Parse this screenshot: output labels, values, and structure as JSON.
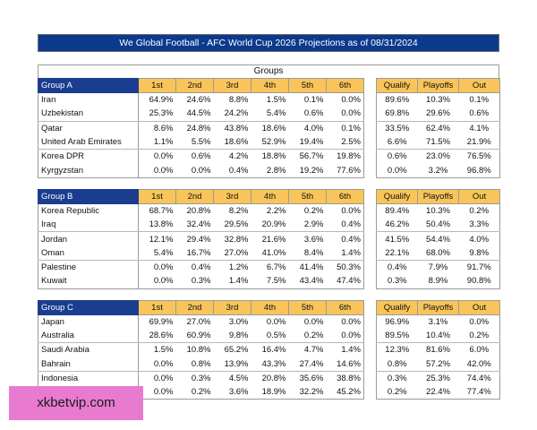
{
  "title": "We Global Football - AFC World Cup 2026 Projections as of 08/31/2024",
  "groups_label": "Groups",
  "columns": {
    "places": [
      "1st",
      "2nd",
      "3rd",
      "4th",
      "5th",
      "6th"
    ],
    "outcomes": [
      "Qualify",
      "Playoffs",
      "Out"
    ]
  },
  "groups": [
    {
      "name": "Group A",
      "rows": [
        {
          "team": "Iran",
          "places": [
            "64.9%",
            "24.6%",
            "8.8%",
            "1.5%",
            "0.1%",
            "0.0%"
          ],
          "outcomes": [
            "89.6%",
            "10.3%",
            "0.1%"
          ]
        },
        {
          "team": "Uzbekistan",
          "places": [
            "25.3%",
            "44.5%",
            "24.2%",
            "5.4%",
            "0.6%",
            "0.0%"
          ],
          "outcomes": [
            "69.8%",
            "29.6%",
            "0.6%"
          ]
        },
        {
          "team": "Qatar",
          "places": [
            "8.6%",
            "24.8%",
            "43.8%",
            "18.6%",
            "4.0%",
            "0.1%"
          ],
          "outcomes": [
            "33.5%",
            "62.4%",
            "4.1%"
          ]
        },
        {
          "team": "United Arab Emirates",
          "places": [
            "1.1%",
            "5.5%",
            "18.6%",
            "52.9%",
            "19.4%",
            "2.5%"
          ],
          "outcomes": [
            "6.6%",
            "71.5%",
            "21.9%"
          ]
        },
        {
          "team": "Korea DPR",
          "places": [
            "0.0%",
            "0.6%",
            "4.2%",
            "18.8%",
            "56.7%",
            "19.8%"
          ],
          "outcomes": [
            "0.6%",
            "23.0%",
            "76.5%"
          ]
        },
        {
          "team": "Kyrgyzstan",
          "places": [
            "0.0%",
            "0.0%",
            "0.4%",
            "2.8%",
            "19.2%",
            "77.6%"
          ],
          "outcomes": [
            "0.0%",
            "3.2%",
            "96.8%"
          ]
        }
      ]
    },
    {
      "name": "Group B",
      "rows": [
        {
          "team": "Korea Republic",
          "places": [
            "68.7%",
            "20.8%",
            "8.2%",
            "2.2%",
            "0.2%",
            "0.0%"
          ],
          "outcomes": [
            "89.4%",
            "10.3%",
            "0.2%"
          ]
        },
        {
          "team": "Iraq",
          "places": [
            "13.8%",
            "32.4%",
            "29.5%",
            "20.9%",
            "2.9%",
            "0.4%"
          ],
          "outcomes": [
            "46.2%",
            "50.4%",
            "3.3%"
          ]
        },
        {
          "team": "Jordan",
          "places": [
            "12.1%",
            "29.4%",
            "32.8%",
            "21.6%",
            "3.6%",
            "0.4%"
          ],
          "outcomes": [
            "41.5%",
            "54.4%",
            "4.0%"
          ]
        },
        {
          "team": "Oman",
          "places": [
            "5.4%",
            "16.7%",
            "27.0%",
            "41.0%",
            "8.4%",
            "1.4%"
          ],
          "outcomes": [
            "22.1%",
            "68.0%",
            "9.8%"
          ]
        },
        {
          "team": "Palestine",
          "places": [
            "0.0%",
            "0.4%",
            "1.2%",
            "6.7%",
            "41.4%",
            "50.3%"
          ],
          "outcomes": [
            "0.4%",
            "7.9%",
            "91.7%"
          ]
        },
        {
          "team": "Kuwait",
          "places": [
            "0.0%",
            "0.3%",
            "1.4%",
            "7.5%",
            "43.4%",
            "47.4%"
          ],
          "outcomes": [
            "0.3%",
            "8.9%",
            "90.8%"
          ]
        }
      ]
    },
    {
      "name": "Group C",
      "rows": [
        {
          "team": "Japan",
          "places": [
            "69.9%",
            "27.0%",
            "3.0%",
            "0.0%",
            "0.0%",
            "0.0%"
          ],
          "outcomes": [
            "96.9%",
            "3.1%",
            "0.0%"
          ]
        },
        {
          "team": "Australia",
          "places": [
            "28.6%",
            "60.9%",
            "9.8%",
            "0.5%",
            "0.2%",
            "0.0%"
          ],
          "outcomes": [
            "89.5%",
            "10.4%",
            "0.2%"
          ]
        },
        {
          "team": "Saudi Arabia",
          "places": [
            "1.5%",
            "10.8%",
            "65.2%",
            "16.4%",
            "4.7%",
            "1.4%"
          ],
          "outcomes": [
            "12.3%",
            "81.6%",
            "6.0%"
          ]
        },
        {
          "team": "Bahrain",
          "places": [
            "0.0%",
            "0.8%",
            "13.9%",
            "43.3%",
            "27.4%",
            "14.6%"
          ],
          "outcomes": [
            "0.8%",
            "57.2%",
            "42.0%"
          ]
        },
        {
          "team": "Indonesia",
          "places": [
            "0.0%",
            "0.3%",
            "4.5%",
            "20.8%",
            "35.6%",
            "38.8%"
          ],
          "outcomes": [
            "0.3%",
            "25.3%",
            "74.4%"
          ]
        },
        {
          "team": "China PR",
          "places": [
            "0.0%",
            "0.2%",
            "3.6%",
            "18.9%",
            "32.2%",
            "45.2%"
          ],
          "outcomes": [
            "0.2%",
            "22.4%",
            "77.4%"
          ]
        }
      ]
    }
  ],
  "watermark": "xkbetvip.com",
  "colors": {
    "title_bg": "#0b3a8c",
    "group_bg": "#1a3d8f",
    "header_bg": "#f9c55a",
    "watermark_bg": "#e87ad0"
  }
}
